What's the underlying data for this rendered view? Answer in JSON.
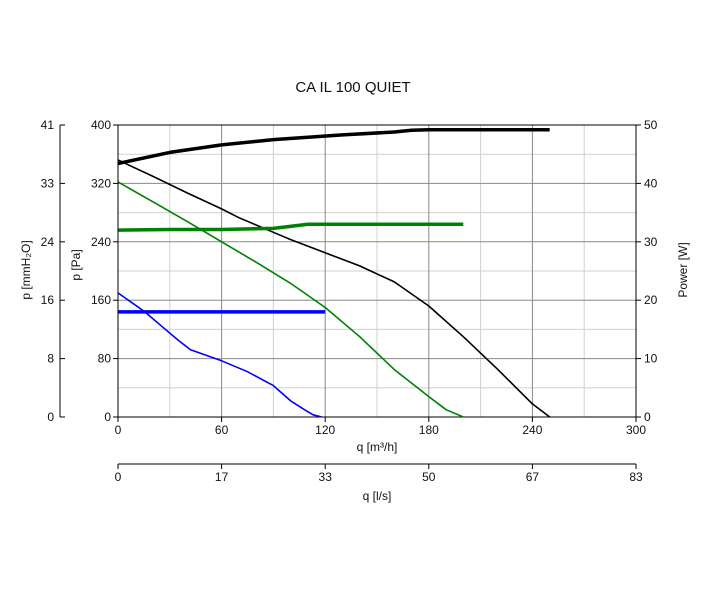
{
  "chart_data": {
    "type": "line",
    "title": "CA IL 100 QUIET",
    "xlabel": "q [m³/h]",
    "xlabel2": "q [l/s]",
    "ylabel_pa": "p [Pa]",
    "ylabel_mm": "p [mmH₂O]",
    "ylabel_right": "Power [W]",
    "xlim": [
      0,
      300
    ],
    "ylim": [
      0,
      400
    ],
    "ylim_right": [
      0,
      50
    ],
    "grid": true,
    "x_ticks": [
      "0",
      "60",
      "120",
      "180",
      "240",
      "300"
    ],
    "x_ticks_ls": [
      "0",
      "17",
      "33",
      "50",
      "67",
      "83"
    ],
    "y_ticks_pa": [
      "0",
      "80",
      "160",
      "240",
      "320",
      "400"
    ],
    "y_ticks_mm": [
      "0",
      "8",
      "16",
      "24",
      "33",
      "41"
    ],
    "y_ticks_right": [
      "0",
      "10",
      "20",
      "30",
      "40",
      "50"
    ],
    "series": [
      {
        "axis": "pressure",
        "color": "#000000",
        "points": [
          [
            0,
            352
          ],
          [
            20,
            330
          ],
          [
            40,
            307
          ],
          [
            60,
            285
          ],
          [
            70,
            273
          ],
          [
            80,
            263
          ],
          [
            90,
            253
          ],
          [
            100,
            243
          ],
          [
            120,
            225
          ],
          [
            140,
            207
          ],
          [
            160,
            185
          ],
          [
            180,
            152
          ],
          [
            200,
            110
          ],
          [
            220,
            65
          ],
          [
            240,
            18
          ],
          [
            250,
            0
          ]
        ]
      },
      {
        "axis": "pressure",
        "color": "#008000",
        "points": [
          [
            0,
            322
          ],
          [
            20,
            295
          ],
          [
            40,
            268
          ],
          [
            60,
            240
          ],
          [
            80,
            212
          ],
          [
            100,
            183
          ],
          [
            120,
            150
          ],
          [
            140,
            110
          ],
          [
            160,
            65
          ],
          [
            180,
            28
          ],
          [
            190,
            10
          ],
          [
            200,
            0
          ]
        ]
      },
      {
        "axis": "pressure",
        "color": "#0000ff",
        "points": [
          [
            0,
            170
          ],
          [
            15,
            145
          ],
          [
            25,
            125
          ],
          [
            35,
            105
          ],
          [
            42,
            92
          ],
          [
            60,
            77
          ],
          [
            75,
            62
          ],
          [
            90,
            43
          ],
          [
            100,
            22
          ],
          [
            108,
            10
          ],
          [
            113,
            3
          ],
          [
            118,
            0
          ]
        ]
      },
      {
        "axis": "power",
        "color": "#000000",
        "points": [
          [
            0,
            43.4
          ],
          [
            30,
            45.3
          ],
          [
            60,
            46.6
          ],
          [
            90,
            47.5
          ],
          [
            130,
            48.3
          ],
          [
            160,
            48.8
          ],
          [
            170,
            49.1
          ],
          [
            180,
            49.2
          ],
          [
            250,
            49.2
          ]
        ]
      },
      {
        "axis": "power",
        "color": "#008000",
        "points": [
          [
            0,
            32.0
          ],
          [
            30,
            32.1
          ],
          [
            60,
            32.1
          ],
          [
            90,
            32.3
          ],
          [
            110,
            33.0
          ],
          [
            200,
            33.0
          ]
        ]
      },
      {
        "axis": "power",
        "color": "#0000ff",
        "points": [
          [
            0,
            18.0
          ],
          [
            120,
            18.0
          ]
        ]
      }
    ]
  }
}
